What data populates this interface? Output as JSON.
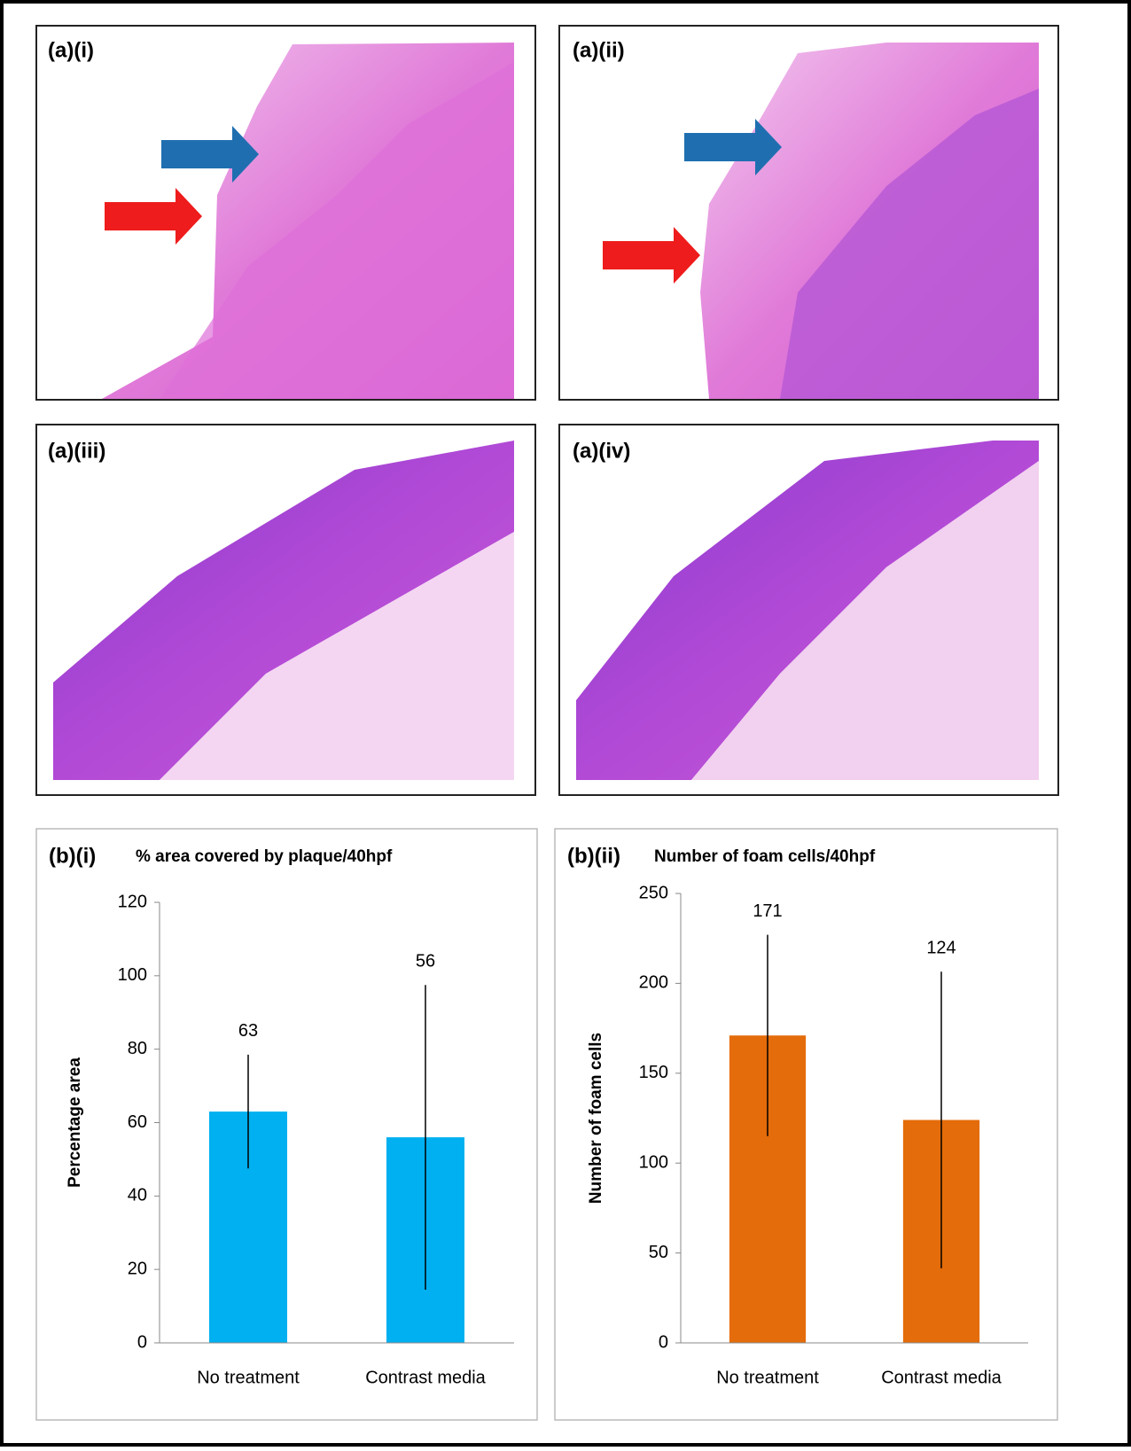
{
  "panels": [
    {
      "label": "(a)(i)"
    },
    {
      "label": "(a)(ii)"
    },
    {
      "label": "(a)(iii)"
    },
    {
      "label": "(a)(iv)"
    }
  ],
  "chart_data": [
    {
      "type": "bar",
      "label": "(b)(i)",
      "title": "% area covered by plaque/40hpf",
      "y_label": "Percentage area",
      "categories": [
        "No treatment",
        "Contrast media"
      ],
      "values": [
        63,
        56
      ],
      "errors": [
        15.5,
        41.5
      ],
      "color": "#00b0f0",
      "ylim": [
        0,
        120
      ],
      "yticks": [
        0,
        20,
        40,
        60,
        80,
        100,
        120
      ]
    },
    {
      "type": "bar",
      "label": "(b)(ii)",
      "title": "Number of foam cells/40hpf",
      "y_label": "Number of foam cells",
      "categories": [
        "No treatment",
        "Contrast media"
      ],
      "values": [
        171,
        124
      ],
      "errors": [
        56,
        82.5
      ],
      "color": "#e46c0a",
      "ylim": [
        0,
        250
      ],
      "yticks": [
        0,
        50,
        100,
        150,
        200,
        250
      ]
    }
  ]
}
